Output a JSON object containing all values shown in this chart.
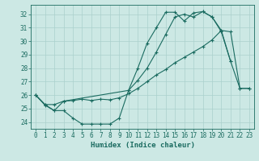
{
  "xlabel": "Humidex (Indice chaleur)",
  "bg_color": "#cce8e4",
  "grid_color": "#aad0cc",
  "line_color": "#1a6b60",
  "xlim": [
    -0.5,
    23.5
  ],
  "ylim": [
    23.5,
    32.7
  ],
  "yticks": [
    24,
    25,
    26,
    27,
    28,
    29,
    30,
    31,
    32
  ],
  "xticks": [
    0,
    1,
    2,
    3,
    4,
    5,
    6,
    7,
    8,
    9,
    10,
    11,
    12,
    13,
    14,
    15,
    16,
    17,
    18,
    19,
    20,
    21,
    22,
    23
  ],
  "line1_x": [
    0,
    1,
    2,
    3,
    4,
    5,
    6,
    7,
    8,
    9,
    10,
    11,
    12,
    13,
    14,
    15,
    16,
    17,
    18,
    19,
    20,
    21
  ],
  "line1_y": [
    26.0,
    25.25,
    24.85,
    24.85,
    24.3,
    23.85,
    23.85,
    23.85,
    23.85,
    24.3,
    26.35,
    28.0,
    29.85,
    31.0,
    32.15,
    32.15,
    31.5,
    32.1,
    32.2,
    31.8,
    30.8,
    28.5
  ],
  "line2_x": [
    0,
    1,
    2,
    3,
    4,
    5,
    6,
    7,
    8,
    9,
    10,
    11,
    12,
    13,
    14,
    15,
    16,
    17,
    18,
    19,
    20,
    21,
    22,
    23
  ],
  "line2_y": [
    26.0,
    25.3,
    25.3,
    25.55,
    25.6,
    25.7,
    25.6,
    25.7,
    25.65,
    25.8,
    26.1,
    26.5,
    27.0,
    27.5,
    27.9,
    28.4,
    28.8,
    29.2,
    29.6,
    30.1,
    30.8,
    30.7,
    26.5,
    26.5
  ],
  "line3_x": [
    0,
    1,
    2,
    3,
    10,
    11,
    12,
    13,
    14,
    15,
    16,
    17,
    18,
    19,
    20,
    21,
    22,
    23
  ],
  "line3_y": [
    26.0,
    25.3,
    24.85,
    25.55,
    26.35,
    27.1,
    28.0,
    29.2,
    30.5,
    31.8,
    32.0,
    31.8,
    32.2,
    31.8,
    30.7,
    28.5,
    26.5,
    26.5
  ]
}
